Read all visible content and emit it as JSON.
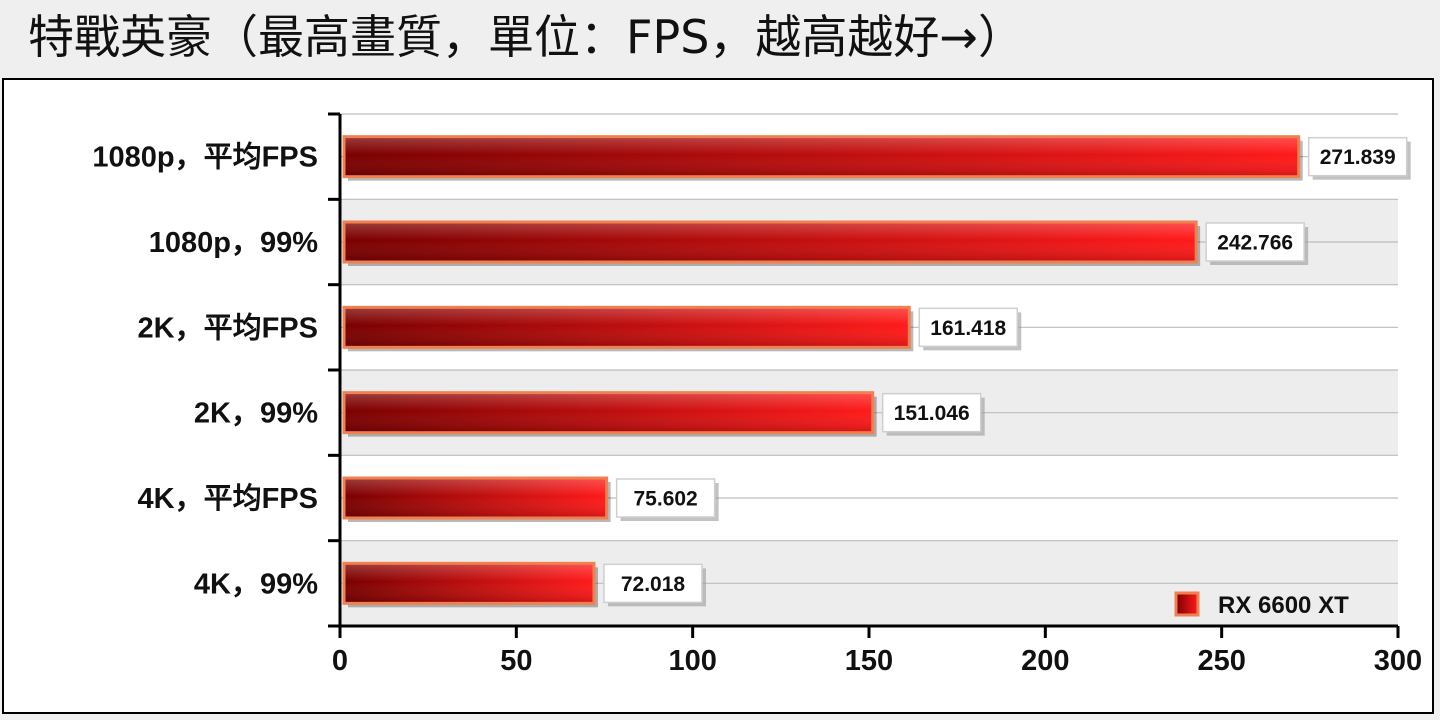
{
  "chart_data": {
    "type": "bar",
    "orientation": "horizontal",
    "title": "特戰英豪（最高畫質，單位：FPS，越高越好→）",
    "categories": [
      "1080p，平均FPS",
      "1080p，99%",
      "2K，平均FPS",
      "2K，99%",
      "4K，平均FPS",
      "4K，99%"
    ],
    "series": [
      {
        "name": "RX 6600 XT",
        "values": [
          271.839,
          242.766,
          161.418,
          151.046,
          75.602,
          72.018
        ]
      }
    ],
    "value_labels": [
      "271.839",
      "242.766",
      "161.418",
      "151.046",
      "75.602",
      "72.018"
    ],
    "xlim": [
      0,
      300
    ],
    "xticks": [
      0,
      50,
      100,
      150,
      200,
      250,
      300
    ],
    "xlabel": "",
    "ylabel": "",
    "grid": true,
    "legend_position": "bottom-right",
    "colors": {
      "bar_dark": "#7a0000",
      "bar_light": "#ff1a1a",
      "bar_border": "#f08050",
      "band": "#ededed"
    }
  }
}
